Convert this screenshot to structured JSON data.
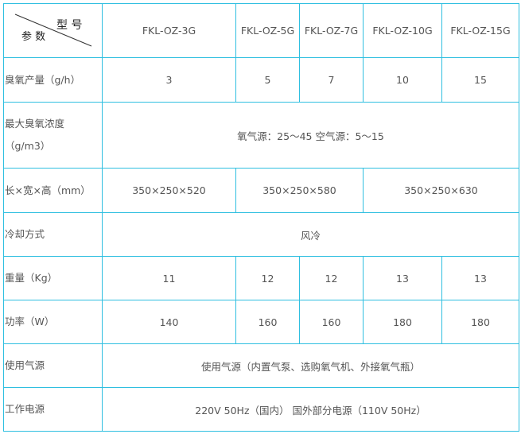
{
  "header": {
    "corner_top": "型 号",
    "corner_bottom": "参 数",
    "models": [
      "FKL-OZ-3G",
      "FKL-OZ-5G",
      "FKL-OZ-7G",
      "FKL-OZ-10G",
      "FKL-OZ-15G"
    ]
  },
  "rows": {
    "output": {
      "label": "臭氧产量（g/h）",
      "values": [
        "3",
        "5",
        "7",
        "10",
        "15"
      ]
    },
    "concentration": {
      "label_line1": "最大臭氧浓度",
      "label_line2": "（g/m3）",
      "value": "氧气源：25～45 空气源：5～15"
    },
    "dimensions": {
      "label": "长×宽×高（mm）",
      "values": [
        "350×250×520",
        "350×250×580",
        "350×250×630"
      ]
    },
    "cooling": {
      "label": "冷却方式",
      "value": "风冷"
    },
    "weight": {
      "label": "重量（Kg）",
      "values": [
        "11",
        "12",
        "12",
        "13",
        "13"
      ]
    },
    "power": {
      "label": "功率（W）",
      "values": [
        "140",
        "160",
        "160",
        "180",
        "180"
      ]
    },
    "gas_source": {
      "label": "使用气源",
      "value": "使用气源（内置气泵、选购氧气机、外接氧气瓶）"
    },
    "supply": {
      "label": "工作电源",
      "value": "220V 50Hz（国内） 国外部分电源（110V 50Hz）"
    }
  }
}
